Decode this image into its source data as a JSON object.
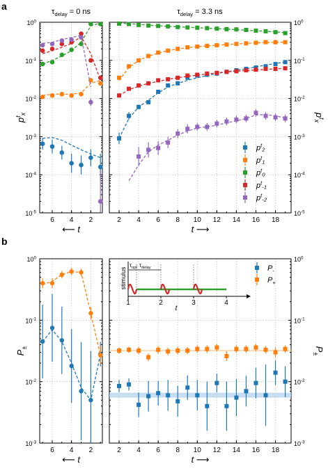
{
  "figure": {
    "panel_a": "a",
    "panel_b": "b",
    "header_left": "τdelay = 0 ns",
    "header_right": "τdelay = 3.3 ns",
    "legend_a": [
      "p^t_2",
      "p^t_1",
      "p^t_0",
      "p^t_-1",
      "p^t_-2"
    ],
    "legend_b": [
      "P-",
      "P+"
    ],
    "inset": {
      "ylabel": "stimulus",
      "xlabel": "t",
      "ticks": [
        "1",
        "2",
        "3",
        "4"
      ],
      "tau_opt": "τopt",
      "tau_delay": "τdelay"
    }
  },
  "colors": {
    "blue": "#1f77b4",
    "orange": "#ff7f0e",
    "green": "#2ca02c",
    "red": "#d62728",
    "purple": "#9467bd",
    "band": "#9cc6e8"
  },
  "chart_data": [
    {
      "name": "a-left",
      "type": "scatter",
      "xlabel": "← t",
      "ylabel": "p^t_x",
      "xticks": [
        "6",
        "4",
        "2"
      ],
      "xlim": [
        7.3,
        0.8
      ],
      "ylim": [
        1e-05,
        1
      ],
      "yscale": "log",
      "yticks": [
        "10^-5",
        "10^-4",
        "10^-3",
        "10^-2",
        "10^-1",
        "10^0"
      ],
      "grid": true,
      "series": [
        {
          "name": "p^t_2",
          "color": "blue",
          "x": [
            7,
            6,
            5,
            4,
            3,
            2,
            1
          ],
          "y": [
            0.00065,
            0.00055,
            0.00038,
            0.0002,
            0.00018,
            0.00028,
            0.00016
          ],
          "err": [
            0.15,
            0.18,
            0.18,
            0.25,
            0.25,
            0.22,
            0.35
          ],
          "fit_x": [
            7,
            6,
            5,
            4,
            3,
            2,
            1
          ],
          "fit_y": [
            0.0009,
            0.00095,
            0.0008,
            0.0006,
            0.00045,
            0.00035,
            0.00028
          ]
        },
        {
          "name": "p^t_1",
          "color": "orange",
          "x": [
            7,
            6,
            5,
            4,
            3,
            2,
            1
          ],
          "y": [
            0.011,
            0.012,
            0.013,
            0.012,
            0.013,
            0.03,
            0.025
          ],
          "err": [
            0.05,
            0.05,
            0.05,
            0.05,
            0.05,
            0.05,
            0.05
          ],
          "fit_x": [
            7,
            6,
            5,
            4,
            3,
            2,
            1
          ],
          "fit_y": [
            0.012,
            0.013,
            0.013,
            0.013,
            0.014,
            0.025,
            0.03
          ]
        },
        {
          "name": "p^t_0",
          "color": "green",
          "x": [
            7,
            6,
            5,
            4,
            3,
            2,
            1
          ],
          "y": [
            0.08,
            0.09,
            0.14,
            0.19,
            0.27,
            0.9,
            0.9
          ],
          "err": [
            0.04,
            0.04,
            0.04,
            0.04,
            0.04,
            0.03,
            0.03
          ],
          "fit_x": [
            7,
            6,
            5,
            4,
            3,
            2,
            1
          ],
          "fit_y": [
            0.08,
            0.1,
            0.13,
            0.18,
            0.3,
            0.8,
            0.95
          ]
        },
        {
          "name": "p^t_-1",
          "color": "red",
          "x": [
            7,
            6,
            5,
            4,
            3,
            2,
            1
          ],
          "y": [
            0.18,
            0.2,
            0.27,
            0.3,
            0.5,
            0.1,
            0.035
          ],
          "err": [
            0.04,
            0.04,
            0.04,
            0.04,
            0.04,
            0.04,
            0.05
          ],
          "fit_x": [
            7,
            6,
            5,
            4,
            3,
            2,
            1
          ],
          "fit_y": [
            0.15,
            0.18,
            0.22,
            0.28,
            0.42,
            0.15,
            0.03
          ]
        },
        {
          "name": "p^t_-2",
          "color": "purple",
          "x": [
            7,
            6,
            5,
            4,
            3,
            2,
            1
          ],
          "y": [
            0.25,
            0.27,
            0.33,
            0.35,
            0.4,
            0.008,
            2e-05
          ],
          "err": [
            0.04,
            0.04,
            0.04,
            0.04,
            0.04,
            0.1,
            0.8
          ],
          "fit_x": [
            7,
            6,
            5,
            4,
            3,
            2
          ],
          "fit_y": [
            0.28,
            0.3,
            0.35,
            0.4,
            0.45,
            0.02
          ]
        }
      ]
    },
    {
      "name": "a-right",
      "type": "scatter",
      "xlabel": "t →",
      "ylabel": "p^t_x",
      "xticks": [
        "2",
        "4",
        "6",
        "8",
        "10",
        "12",
        "14",
        "16",
        "18"
      ],
      "xlim": [
        1,
        19.6
      ],
      "ylim": [
        1e-05,
        1
      ],
      "yscale": "log",
      "yticks": [
        "10^-5",
        "10^-4",
        "10^-3",
        "10^-2",
        "10^-1",
        "10^0"
      ],
      "grid": true,
      "series": [
        {
          "name": "p^t_2",
          "color": "blue",
          "x": [
            2,
            3,
            4,
            5,
            6,
            7,
            8,
            9,
            10,
            11,
            12,
            13,
            14,
            15,
            16,
            17,
            18,
            19
          ],
          "y": [
            0.0009,
            0.0035,
            0.006,
            0.008,
            0.015,
            0.022,
            0.025,
            0.035,
            0.04,
            0.042,
            0.045,
            0.05,
            0.055,
            0.06,
            0.065,
            0.07,
            0.08,
            0.09
          ],
          "err": [
            0.15,
            0.1,
            0.06,
            0.05,
            0.04,
            0.04,
            0.04,
            0.04,
            0.04,
            0.04,
            0.04,
            0.04,
            0.04,
            0.04,
            0.04,
            0.04,
            0.04,
            0.04
          ],
          "fit_x": [
            2,
            3,
            4,
            5,
            6,
            7,
            8,
            9,
            10,
            11,
            12,
            13,
            14,
            15,
            16,
            17,
            18,
            19
          ],
          "fit_y": [
            0.0009,
            0.003,
            0.006,
            0.009,
            0.014,
            0.02,
            0.025,
            0.03,
            0.035,
            0.04,
            0.045,
            0.05,
            0.055,
            0.06,
            0.068,
            0.075,
            0.083,
            0.09
          ]
        },
        {
          "name": "p^t_1",
          "color": "orange",
          "x": [
            2,
            3,
            4,
            5,
            6,
            7,
            8,
            9,
            10,
            11,
            12,
            13,
            14,
            15,
            16,
            17,
            18,
            19
          ],
          "y": [
            0.035,
            0.07,
            0.1,
            0.13,
            0.16,
            0.18,
            0.2,
            0.22,
            0.23,
            0.24,
            0.25,
            0.26,
            0.27,
            0.28,
            0.29,
            0.3,
            0.3,
            0.3
          ],
          "err": [
            0.04,
            0.04,
            0.04,
            0.04,
            0.04,
            0.04,
            0.04,
            0.04,
            0.04,
            0.04,
            0.04,
            0.04,
            0.04,
            0.04,
            0.04,
            0.04,
            0.04,
            0.04
          ],
          "fit_x": [
            2,
            3,
            4,
            5,
            6,
            7,
            8,
            9,
            10,
            11,
            12,
            13,
            14,
            15,
            16,
            17,
            18,
            19
          ],
          "fit_y": [
            0.03,
            0.065,
            0.1,
            0.13,
            0.155,
            0.18,
            0.2,
            0.215,
            0.23,
            0.24,
            0.25,
            0.26,
            0.27,
            0.28,
            0.29,
            0.295,
            0.3,
            0.3
          ]
        },
        {
          "name": "p^t_0",
          "color": "green",
          "x": [
            2,
            3,
            4,
            5,
            6,
            7,
            8,
            9,
            10,
            11,
            12,
            13,
            14,
            15,
            16,
            17,
            18,
            19
          ],
          "y": [
            0.92,
            0.9,
            0.85,
            0.82,
            0.8,
            0.78,
            0.75,
            0.73,
            0.72,
            0.7,
            0.68,
            0.66,
            0.65,
            0.63,
            0.6,
            0.58,
            0.55,
            0.52
          ],
          "err": [
            0.03,
            0.03,
            0.03,
            0.03,
            0.03,
            0.03,
            0.03,
            0.03,
            0.03,
            0.03,
            0.03,
            0.03,
            0.03,
            0.03,
            0.03,
            0.03,
            0.03,
            0.03
          ],
          "fit_x": [
            2,
            3,
            4,
            5,
            6,
            7,
            8,
            9,
            10,
            11,
            12,
            13,
            14,
            15,
            16,
            17,
            18,
            19
          ],
          "fit_y": [
            0.95,
            0.92,
            0.88,
            0.84,
            0.81,
            0.78,
            0.76,
            0.74,
            0.72,
            0.7,
            0.68,
            0.66,
            0.64,
            0.62,
            0.6,
            0.58,
            0.56,
            0.53
          ]
        },
        {
          "name": "p^t_-1",
          "color": "red",
          "x": [
            2,
            3,
            4,
            5,
            6,
            7,
            8,
            9,
            10,
            11,
            12,
            13,
            14,
            15,
            16,
            17,
            18,
            19
          ],
          "y": [
            0.012,
            0.018,
            0.022,
            0.025,
            0.03,
            0.032,
            0.035,
            0.04,
            0.042,
            0.045,
            0.047,
            0.05,
            0.052,
            0.055,
            0.057,
            0.06,
            0.06,
            0.062
          ],
          "err": [
            0.05,
            0.04,
            0.04,
            0.04,
            0.04,
            0.04,
            0.04,
            0.04,
            0.04,
            0.04,
            0.04,
            0.04,
            0.04,
            0.04,
            0.04,
            0.04,
            0.04,
            0.04
          ],
          "fit_x": [
            2,
            3,
            4,
            5,
            6,
            7,
            8,
            9,
            10,
            11,
            12,
            13,
            14,
            15,
            16,
            17,
            18,
            19
          ],
          "fit_y": [
            0.012,
            0.017,
            0.021,
            0.025,
            0.028,
            0.032,
            0.035,
            0.038,
            0.041,
            0.044,
            0.047,
            0.05,
            0.052,
            0.054,
            0.056,
            0.058,
            0.06,
            0.062
          ]
        },
        {
          "name": "p^t_-2",
          "color": "purple",
          "x": [
            4,
            5,
            6,
            7,
            8,
            9,
            10,
            11,
            12,
            13,
            14,
            15,
            16,
            17,
            18,
            19
          ],
          "y": [
            0.0003,
            0.00045,
            0.0005,
            0.0007,
            0.0012,
            0.0016,
            0.0018,
            0.0018,
            0.0022,
            0.0025,
            0.0028,
            0.003,
            0.0042,
            0.0035,
            0.0032,
            0.003
          ],
          "err": [
            0.25,
            0.2,
            0.18,
            0.15,
            0.12,
            0.12,
            0.1,
            0.1,
            0.1,
            0.1,
            0.1,
            0.1,
            0.1,
            0.1,
            0.1,
            0.1
          ],
          "fit_x": [
            3,
            4,
            5,
            6,
            7,
            8,
            9,
            10,
            11,
            12,
            13,
            14,
            15,
            16,
            17,
            18,
            19
          ],
          "fit_y": [
            7e-05,
            0.00018,
            0.0004,
            0.0006,
            0.0008,
            0.0011,
            0.0014,
            0.0017,
            0.0018,
            0.002,
            0.0023,
            0.0026,
            0.003,
            0.0037,
            0.0038,
            0.0035,
            0.0031
          ]
        }
      ]
    },
    {
      "name": "b-left",
      "type": "scatter",
      "xlabel": "← t",
      "ylabel": "P±",
      "xticks": [
        "6",
        "4",
        "2"
      ],
      "xlim": [
        7.3,
        0.8
      ],
      "ylim": [
        0.001,
        1
      ],
      "yscale": "log",
      "yticks": [
        "10^-3",
        "10^-2",
        "10^-1",
        "10^0"
      ],
      "grid": true,
      "series": [
        {
          "name": "P-",
          "color": "blue",
          "x": [
            7,
            6,
            5,
            4,
            3,
            2,
            1
          ],
          "y": [
            0.045,
            0.075,
            0.047,
            0.018,
            0.007,
            0.005,
            0.028
          ],
          "err": [
            0.6,
            0.55,
            0.55,
            0.6,
            0.8,
            0.8,
            0.2
          ],
          "fit_x": [
            7,
            6,
            5,
            4,
            3,
            2,
            1
          ],
          "fit_y": [
            0.045,
            0.07,
            0.045,
            0.02,
            0.008,
            0.005,
            0.028
          ]
        },
        {
          "name": "P+",
          "color": "orange",
          "x": [
            7,
            6,
            5,
            4,
            3,
            2,
            1
          ],
          "y": [
            0.4,
            0.4,
            0.55,
            0.62,
            0.6,
            0.13,
            0.027
          ],
          "err": [
            0.08,
            0.08,
            0.06,
            0.06,
            0.06,
            0.1,
            0.15
          ],
          "fit_x": [
            7,
            6,
            5,
            4,
            3,
            2,
            1
          ],
          "fit_y": [
            0.38,
            0.43,
            0.55,
            0.62,
            0.6,
            0.13,
            0.027
          ]
        }
      ]
    },
    {
      "name": "b-right",
      "type": "scatter",
      "xlabel": "t →",
      "ylabel": "P±",
      "xticks": [
        "2",
        "4",
        "6",
        "8",
        "10",
        "12",
        "14",
        "16",
        "18"
      ],
      "xlim": [
        1,
        19.6
      ],
      "ylim": [
        0.001,
        1
      ],
      "yscale": "log",
      "yticks": [
        "10^-3",
        "10^-2",
        "10^-1",
        "10^0"
      ],
      "grid": true,
      "band": {
        "series": "P-",
        "center": 0.006,
        "lo": 0.0055,
        "hi": 0.0066
      },
      "line_plus": 0.032,
      "series": [
        {
          "name": "P-",
          "color": "blue",
          "x": [
            2,
            3,
            4,
            5,
            6,
            7,
            8,
            9,
            10,
            11,
            12,
            13,
            14,
            15,
            16,
            17,
            18,
            19
          ],
          "y": [
            0.0085,
            0.009,
            0.0042,
            0.0058,
            0.0065,
            0.006,
            0.0048,
            0.008,
            0.006,
            0.004,
            0.0095,
            0.004,
            0.0055,
            0.007,
            0.0095,
            0.006,
            0.014,
            0.01
          ],
          "err": [
            0.1,
            0.1,
            0.2,
            0.25,
            0.2,
            0.25,
            0.25,
            0.2,
            0.25,
            0.4,
            0.15,
            0.4,
            0.3,
            0.25,
            0.25,
            0.5,
            0.2,
            0.25
          ]
        },
        {
          "name": "P+",
          "color": "orange",
          "x": [
            2,
            3,
            4,
            5,
            6,
            7,
            8,
            9,
            10,
            11,
            12,
            13,
            14,
            15,
            16,
            17,
            18,
            19
          ],
          "y": [
            0.032,
            0.033,
            0.032,
            0.025,
            0.033,
            0.031,
            0.032,
            0.032,
            0.034,
            0.034,
            0.036,
            0.026,
            0.034,
            0.034,
            0.036,
            0.033,
            0.03,
            0.034
          ],
          "err": [
            0.05,
            0.05,
            0.06,
            0.06,
            0.06,
            0.06,
            0.06,
            0.06,
            0.06,
            0.06,
            0.06,
            0.08,
            0.06,
            0.06,
            0.06,
            0.06,
            0.08,
            0.06
          ]
        }
      ]
    }
  ]
}
